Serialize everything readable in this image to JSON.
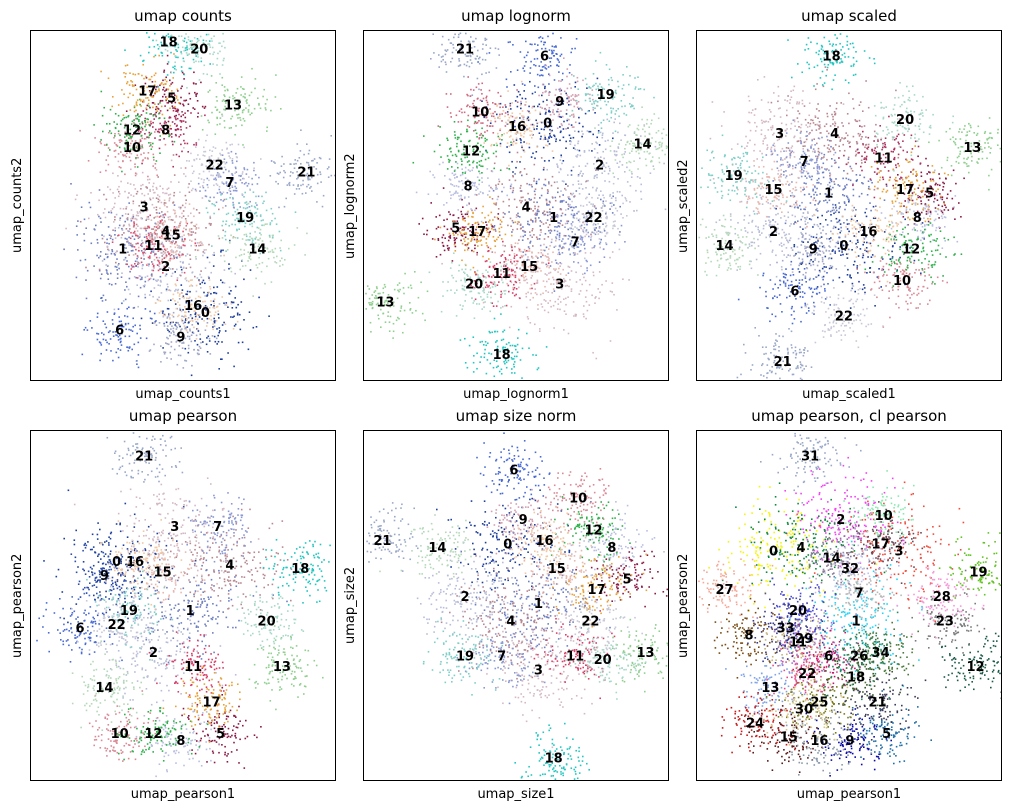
{
  "chart_data": [
    {
      "type": "scatter",
      "title": "umap counts",
      "xlabel": "umap_counts1",
      "ylabel": "umap_counts2",
      "grid": false,
      "legend": "on data",
      "clusters": [
        {
          "label": "0",
          "x": 0.57,
          "y": 0.2,
          "color": "#1f3f9e"
        },
        {
          "label": "1",
          "x": 0.3,
          "y": 0.38,
          "color": "#6e7fc2"
        },
        {
          "label": "2",
          "x": 0.44,
          "y": 0.33,
          "color": "#b8bdd8"
        },
        {
          "label": "3",
          "x": 0.37,
          "y": 0.5,
          "color": "#d4b9c4"
        },
        {
          "label": "4",
          "x": 0.44,
          "y": 0.43,
          "color": "#b88891"
        },
        {
          "label": "5",
          "x": 0.46,
          "y": 0.81,
          "color": "#8b1a45"
        },
        {
          "label": "6",
          "x": 0.29,
          "y": 0.15,
          "color": "#4a6bd6"
        },
        {
          "label": "7",
          "x": 0.65,
          "y": 0.57,
          "color": "#8a98d4"
        },
        {
          "label": "8",
          "x": 0.44,
          "y": 0.72,
          "color": "#b03060"
        },
        {
          "label": "9",
          "x": 0.49,
          "y": 0.13,
          "color": "#a1a7c8"
        },
        {
          "label": "10",
          "x": 0.33,
          "y": 0.67,
          "color": "#d98a96"
        },
        {
          "label": "11",
          "x": 0.4,
          "y": 0.39,
          "color": "#e05070"
        },
        {
          "label": "12",
          "x": 0.33,
          "y": 0.72,
          "color": "#2fb24c"
        },
        {
          "label": "13",
          "x": 0.66,
          "y": 0.79,
          "color": "#8fcf8f"
        },
        {
          "label": "14",
          "x": 0.74,
          "y": 0.38,
          "color": "#b5d8b8"
        },
        {
          "label": "15",
          "x": 0.46,
          "y": 0.42,
          "color": "#e7b8b0"
        },
        {
          "label": "16",
          "x": 0.53,
          "y": 0.22,
          "color": "#f1c8a3"
        },
        {
          "label": "17",
          "x": 0.38,
          "y": 0.83,
          "color": "#e8a23a"
        },
        {
          "label": "18",
          "x": 0.45,
          "y": 0.97,
          "color": "#24c7c0"
        },
        {
          "label": "19",
          "x": 0.7,
          "y": 0.47,
          "color": "#7fcfc8"
        },
        {
          "label": "20",
          "x": 0.55,
          "y": 0.95,
          "color": "#a8d8c8"
        },
        {
          "label": "21",
          "x": 0.9,
          "y": 0.6,
          "color": "#9aa8c8"
        },
        {
          "label": "22",
          "x": 0.6,
          "y": 0.62,
          "color": "#c8c8d8"
        }
      ]
    },
    {
      "type": "scatter",
      "title": "umap lognorm",
      "xlabel": "umap_lognorm1",
      "ylabel": "umap_lognorm2",
      "grid": false,
      "legend": "on data",
      "clusters": [
        {
          "label": "0",
          "x": 0.6,
          "y": 0.74,
          "color": "#1f3f9e"
        },
        {
          "label": "1",
          "x": 0.62,
          "y": 0.47,
          "color": "#6e7fc2"
        },
        {
          "label": "2",
          "x": 0.77,
          "y": 0.62,
          "color": "#b8bdd8"
        },
        {
          "label": "3",
          "x": 0.64,
          "y": 0.28,
          "color": "#d4b9c4"
        },
        {
          "label": "4",
          "x": 0.53,
          "y": 0.5,
          "color": "#b88891"
        },
        {
          "label": "5",
          "x": 0.3,
          "y": 0.44,
          "color": "#8b1a45"
        },
        {
          "label": "6",
          "x": 0.59,
          "y": 0.93,
          "color": "#4a6bd6"
        },
        {
          "label": "7",
          "x": 0.69,
          "y": 0.4,
          "color": "#8a98d4"
        },
        {
          "label": "8",
          "x": 0.34,
          "y": 0.56,
          "color": "#b8bfe0"
        },
        {
          "label": "9",
          "x": 0.64,
          "y": 0.8,
          "color": "#d4a0b0"
        },
        {
          "label": "10",
          "x": 0.38,
          "y": 0.77,
          "color": "#d06a80"
        },
        {
          "label": "11",
          "x": 0.45,
          "y": 0.31,
          "color": "#d8406a"
        },
        {
          "label": "12",
          "x": 0.35,
          "y": 0.66,
          "color": "#2fb24c"
        },
        {
          "label": "13",
          "x": 0.07,
          "y": 0.23,
          "color": "#8fcf8f"
        },
        {
          "label": "14",
          "x": 0.91,
          "y": 0.68,
          "color": "#b5d8b8"
        },
        {
          "label": "15",
          "x": 0.54,
          "y": 0.33,
          "color": "#e7b8b0"
        },
        {
          "label": "16",
          "x": 0.5,
          "y": 0.73,
          "color": "#f1c8a3"
        },
        {
          "label": "17",
          "x": 0.37,
          "y": 0.43,
          "color": "#e8a23a"
        },
        {
          "label": "18",
          "x": 0.45,
          "y": 0.08,
          "color": "#24c7c0"
        },
        {
          "label": "19",
          "x": 0.79,
          "y": 0.82,
          "color": "#7fcfc8"
        },
        {
          "label": "20",
          "x": 0.36,
          "y": 0.28,
          "color": "#a8d8c8"
        },
        {
          "label": "21",
          "x": 0.33,
          "y": 0.95,
          "color": "#9aa8c8"
        },
        {
          "label": "22",
          "x": 0.75,
          "y": 0.47,
          "color": "#c8c8d8"
        }
      ]
    },
    {
      "type": "scatter",
      "title": "umap scaled",
      "xlabel": "umap_scaled1",
      "ylabel": "umap_scaled2",
      "grid": false,
      "legend": "on data",
      "clusters": [
        {
          "label": "0",
          "x": 0.48,
          "y": 0.39,
          "color": "#1f3f9e"
        },
        {
          "label": "1",
          "x": 0.43,
          "y": 0.54,
          "color": "#6e7fc2"
        },
        {
          "label": "2",
          "x": 0.25,
          "y": 0.43,
          "color": "#b8bdd8"
        },
        {
          "label": "3",
          "x": 0.27,
          "y": 0.71,
          "color": "#d4b9c4"
        },
        {
          "label": "4",
          "x": 0.45,
          "y": 0.71,
          "color": "#b88891"
        },
        {
          "label": "5",
          "x": 0.76,
          "y": 0.54,
          "color": "#8b1a45"
        },
        {
          "label": "6",
          "x": 0.32,
          "y": 0.26,
          "color": "#4a6bd6"
        },
        {
          "label": "7",
          "x": 0.35,
          "y": 0.63,
          "color": "#8a98d4"
        },
        {
          "label": "8",
          "x": 0.72,
          "y": 0.47,
          "color": "#b8bfe0"
        },
        {
          "label": "9",
          "x": 0.38,
          "y": 0.38,
          "color": "#a1a7c8"
        },
        {
          "label": "10",
          "x": 0.67,
          "y": 0.29,
          "color": "#d98a96"
        },
        {
          "label": "11",
          "x": 0.61,
          "y": 0.64,
          "color": "#b03060"
        },
        {
          "label": "12",
          "x": 0.7,
          "y": 0.38,
          "color": "#2fb24c"
        },
        {
          "label": "13",
          "x": 0.9,
          "y": 0.67,
          "color": "#8fcf8f"
        },
        {
          "label": "14",
          "x": 0.09,
          "y": 0.39,
          "color": "#b5d8b8"
        },
        {
          "label": "15",
          "x": 0.25,
          "y": 0.55,
          "color": "#e7b8b0"
        },
        {
          "label": "16",
          "x": 0.56,
          "y": 0.43,
          "color": "#f1c8a3"
        },
        {
          "label": "17",
          "x": 0.68,
          "y": 0.55,
          "color": "#e8a23a"
        },
        {
          "label": "18",
          "x": 0.44,
          "y": 0.93,
          "color": "#24c7c0"
        },
        {
          "label": "19",
          "x": 0.12,
          "y": 0.59,
          "color": "#7fcfc8"
        },
        {
          "label": "20",
          "x": 0.68,
          "y": 0.75,
          "color": "#a8d8c8"
        },
        {
          "label": "21",
          "x": 0.28,
          "y": 0.06,
          "color": "#9aa8c8"
        },
        {
          "label": "22",
          "x": 0.48,
          "y": 0.19,
          "color": "#c8c8d8"
        }
      ]
    },
    {
      "type": "scatter",
      "title": "umap pearson",
      "xlabel": "umap_pearson1",
      "ylabel": "umap_pearson2",
      "grid": false,
      "legend": "on data",
      "clusters": [
        {
          "label": "0",
          "x": 0.28,
          "y": 0.63,
          "color": "#1f3f9e"
        },
        {
          "label": "1",
          "x": 0.52,
          "y": 0.49,
          "color": "#6e7fc2"
        },
        {
          "label": "2",
          "x": 0.4,
          "y": 0.37,
          "color": "#b8bdd8"
        },
        {
          "label": "3",
          "x": 0.47,
          "y": 0.73,
          "color": "#d4b9c4"
        },
        {
          "label": "4",
          "x": 0.65,
          "y": 0.62,
          "color": "#b88891"
        },
        {
          "label": "5",
          "x": 0.62,
          "y": 0.14,
          "color": "#8b1a45"
        },
        {
          "label": "6",
          "x": 0.16,
          "y": 0.44,
          "color": "#4a6bd6"
        },
        {
          "label": "7",
          "x": 0.61,
          "y": 0.73,
          "color": "#8a98d4"
        },
        {
          "label": "8",
          "x": 0.49,
          "y": 0.12,
          "color": "#b8bfe0"
        },
        {
          "label": "9",
          "x": 0.24,
          "y": 0.59,
          "color": "#2f4fae"
        },
        {
          "label": "10",
          "x": 0.29,
          "y": 0.14,
          "color": "#d98a96"
        },
        {
          "label": "11",
          "x": 0.53,
          "y": 0.33,
          "color": "#d8406a"
        },
        {
          "label": "12",
          "x": 0.4,
          "y": 0.14,
          "color": "#2fb24c"
        },
        {
          "label": "13",
          "x": 0.82,
          "y": 0.33,
          "color": "#8fcf8f"
        },
        {
          "label": "14",
          "x": 0.24,
          "y": 0.27,
          "color": "#b5d8b8"
        },
        {
          "label": "15",
          "x": 0.43,
          "y": 0.6,
          "color": "#e7b8b0"
        },
        {
          "label": "16",
          "x": 0.34,
          "y": 0.63,
          "color": "#f1c8a3"
        },
        {
          "label": "17",
          "x": 0.59,
          "y": 0.23,
          "color": "#e8a23a"
        },
        {
          "label": "18",
          "x": 0.88,
          "y": 0.61,
          "color": "#24c7c0"
        },
        {
          "label": "19",
          "x": 0.32,
          "y": 0.49,
          "color": "#7fcfc8"
        },
        {
          "label": "20",
          "x": 0.77,
          "y": 0.46,
          "color": "#a8d8c8"
        },
        {
          "label": "21",
          "x": 0.37,
          "y": 0.93,
          "color": "#9aa8c8"
        },
        {
          "label": "22",
          "x": 0.28,
          "y": 0.45,
          "color": "#c8c8d8"
        }
      ]
    },
    {
      "type": "scatter",
      "title": "umap size norm",
      "xlabel": "umap_size1",
      "ylabel": "umap_size2",
      "grid": false,
      "legend": "on data",
      "clusters": [
        {
          "label": "0",
          "x": 0.47,
          "y": 0.68,
          "color": "#1f3f9e"
        },
        {
          "label": "1",
          "x": 0.57,
          "y": 0.51,
          "color": "#6e7fc2"
        },
        {
          "label": "2",
          "x": 0.33,
          "y": 0.53,
          "color": "#b8bdd8"
        },
        {
          "label": "3",
          "x": 0.57,
          "y": 0.32,
          "color": "#d4b9c4"
        },
        {
          "label": "4",
          "x": 0.48,
          "y": 0.46,
          "color": "#b88891"
        },
        {
          "label": "5",
          "x": 0.86,
          "y": 0.58,
          "color": "#8b1a45"
        },
        {
          "label": "6",
          "x": 0.49,
          "y": 0.89,
          "color": "#4a6bd6"
        },
        {
          "label": "7",
          "x": 0.45,
          "y": 0.36,
          "color": "#8a98d4"
        },
        {
          "label": "8",
          "x": 0.81,
          "y": 0.67,
          "color": "#b8bfe0"
        },
        {
          "label": "9",
          "x": 0.52,
          "y": 0.75,
          "color": "#d4a0b0"
        },
        {
          "label": "10",
          "x": 0.7,
          "y": 0.81,
          "color": "#d98a96"
        },
        {
          "label": "11",
          "x": 0.69,
          "y": 0.36,
          "color": "#d8406a"
        },
        {
          "label": "12",
          "x": 0.75,
          "y": 0.72,
          "color": "#2fb24c"
        },
        {
          "label": "13",
          "x": 0.92,
          "y": 0.37,
          "color": "#8fcf8f"
        },
        {
          "label": "14",
          "x": 0.24,
          "y": 0.67,
          "color": "#b5d8b8"
        },
        {
          "label": "15",
          "x": 0.63,
          "y": 0.61,
          "color": "#e7b8b0"
        },
        {
          "label": "16",
          "x": 0.59,
          "y": 0.69,
          "color": "#f1c8a3"
        },
        {
          "label": "17",
          "x": 0.76,
          "y": 0.55,
          "color": "#e8a23a"
        },
        {
          "label": "18",
          "x": 0.62,
          "y": 0.07,
          "color": "#24c7c0"
        },
        {
          "label": "19",
          "x": 0.33,
          "y": 0.36,
          "color": "#7fcfc8"
        },
        {
          "label": "20",
          "x": 0.78,
          "y": 0.35,
          "color": "#a8d8c8"
        },
        {
          "label": "21",
          "x": 0.06,
          "y": 0.69,
          "color": "#9aa8c8"
        },
        {
          "label": "22",
          "x": 0.74,
          "y": 0.46,
          "color": "#c8c8d8"
        }
      ]
    },
    {
      "type": "scatter",
      "title": "umap pearson, cl pearson",
      "xlabel": "umap_pearson1",
      "ylabel": "umap_pearson2",
      "grid": false,
      "legend": "on data",
      "clusters": [
        {
          "label": "0",
          "x": 0.25,
          "y": 0.66,
          "color": "#f5f50a"
        },
        {
          "label": "1",
          "x": 0.52,
          "y": 0.46,
          "color": "#22d3f5"
        },
        {
          "label": "2",
          "x": 0.47,
          "y": 0.75,
          "color": "#f542f5"
        },
        {
          "label": "3",
          "x": 0.66,
          "y": 0.66,
          "color": "#f54a3a"
        },
        {
          "label": "4",
          "x": 0.34,
          "y": 0.67,
          "color": "#0e8a3e"
        },
        {
          "label": "5",
          "x": 0.62,
          "y": 0.14,
          "color": "#1f6fa8"
        },
        {
          "label": "6",
          "x": 0.43,
          "y": 0.36,
          "color": "#c0186a"
        },
        {
          "label": "7",
          "x": 0.53,
          "y": 0.54,
          "color": "#b8b8b8"
        },
        {
          "label": "8",
          "x": 0.17,
          "y": 0.42,
          "color": "#7a4b12"
        },
        {
          "label": "9",
          "x": 0.5,
          "y": 0.12,
          "color": "#0a0aa8"
        },
        {
          "label": "10",
          "x": 0.61,
          "y": 0.76,
          "color": "#8ae8b0"
        },
        {
          "label": "11",
          "x": 0.33,
          "y": 0.4,
          "color": "#c8b478"
        },
        {
          "label": "12",
          "x": 0.91,
          "y": 0.33,
          "color": "#1a5a4a"
        },
        {
          "label": "13",
          "x": 0.24,
          "y": 0.27,
          "color": "#7ea4e8"
        },
        {
          "label": "14",
          "x": 0.44,
          "y": 0.64,
          "color": "#8a7a9a"
        },
        {
          "label": "15",
          "x": 0.3,
          "y": 0.13,
          "color": "#5a1a1a"
        },
        {
          "label": "16",
          "x": 0.4,
          "y": 0.12,
          "color": "#8a9aa8"
        },
        {
          "label": "17",
          "x": 0.6,
          "y": 0.68,
          "color": "#6a4a5a"
        },
        {
          "label": "18",
          "x": 0.52,
          "y": 0.3,
          "color": "#3a5a2a"
        },
        {
          "label": "19",
          "x": 0.92,
          "y": 0.6,
          "color": "#62c422"
        },
        {
          "label": "20",
          "x": 0.33,
          "y": 0.49,
          "color": "#4a4ad8"
        },
        {
          "label": "21",
          "x": 0.59,
          "y": 0.23,
          "color": "#3a3a5a"
        },
        {
          "label": "22",
          "x": 0.36,
          "y": 0.31,
          "color": "#e84a8a"
        },
        {
          "label": "23",
          "x": 0.81,
          "y": 0.46,
          "color": "#7a7a7a"
        },
        {
          "label": "24",
          "x": 0.19,
          "y": 0.17,
          "color": "#c81a1a"
        },
        {
          "label": "25",
          "x": 0.4,
          "y": 0.23,
          "color": "#7a7a1a"
        },
        {
          "label": "26",
          "x": 0.53,
          "y": 0.36,
          "color": "#2a8a6a"
        },
        {
          "label": "27",
          "x": 0.09,
          "y": 0.55,
          "color": "#f5a898"
        },
        {
          "label": "28",
          "x": 0.8,
          "y": 0.53,
          "color": "#f598d8"
        },
        {
          "label": "29",
          "x": 0.35,
          "y": 0.41,
          "color": "#a87ad8"
        },
        {
          "label": "30",
          "x": 0.35,
          "y": 0.21,
          "color": "#d8c888"
        },
        {
          "label": "31",
          "x": 0.37,
          "y": 0.93,
          "color": "#9aa8c8"
        },
        {
          "label": "32",
          "x": 0.5,
          "y": 0.61,
          "color": "#c0c0e8"
        },
        {
          "label": "33",
          "x": 0.29,
          "y": 0.44,
          "color": "#3a3a8a"
        },
        {
          "label": "34",
          "x": 0.6,
          "y": 0.37,
          "color": "#4a7a3a"
        }
      ]
    }
  ]
}
